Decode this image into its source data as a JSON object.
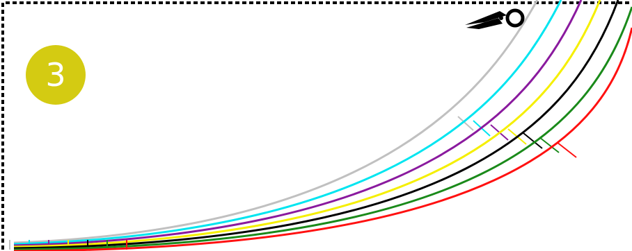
{
  "step": {
    "number": "3",
    "badge_color": "#d4cb12",
    "text_color": "#ffffff"
  },
  "cut_border": {
    "style": "dashed",
    "color": "#000000"
  },
  "scissors_icon": {
    "name": "scissors-icon",
    "color": "#000000"
  },
  "pattern_lines": [
    {
      "name": "size-line-gray",
      "color": "#c0c0c0"
    },
    {
      "name": "size-line-cyan",
      "color": "#00e5f0"
    },
    {
      "name": "size-line-purple",
      "color": "#8a1a9e"
    },
    {
      "name": "size-line-yellow",
      "color": "#f5ef00"
    },
    {
      "name": "size-line-black",
      "color": "#000000"
    },
    {
      "name": "size-line-green",
      "color": "#1a8a1a"
    },
    {
      "name": "size-line-red",
      "color": "#ff1010"
    }
  ]
}
